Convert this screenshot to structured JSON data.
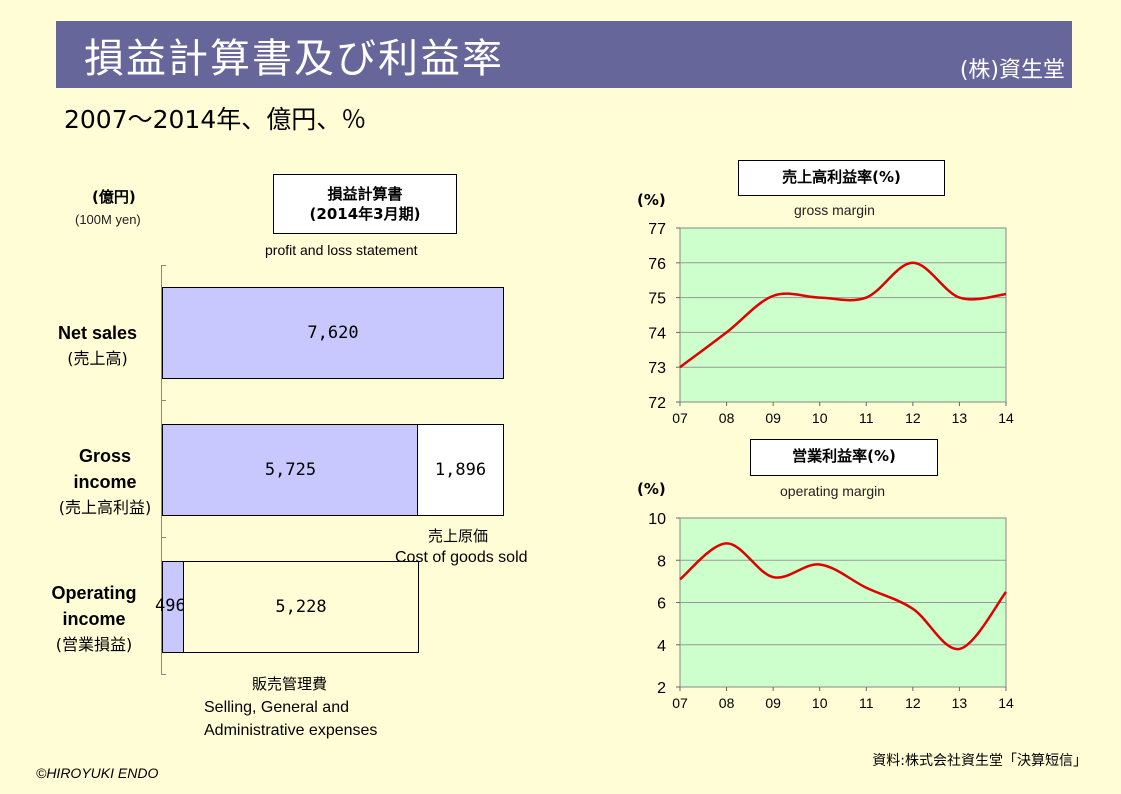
{
  "header": {
    "title": "損益計算書及び利益率",
    "company": "(株)資生堂",
    "subtitle": "2007～2014年、億円、％"
  },
  "statement": {
    "unit_jp": "(億円)",
    "unit_en": "(100M yen)",
    "box_line1": "損益計算書",
    "box_line2": "(2014年3月期)",
    "box_en": "profit and loss statement",
    "rows": [
      {
        "label_en_1": "Net sales",
        "label_en_2": "",
        "label_jp": "(売上高)",
        "bar_value": "7,620",
        "remainder": ""
      },
      {
        "label_en_1": "Gross",
        "label_en_2": "income",
        "label_jp": "(売上高利益)",
        "bar_value": "5,725",
        "remainder": "1,896"
      },
      {
        "label_en_1": "Operating",
        "label_en_2": "income",
        "label_jp": "(営業損益)",
        "bar_value": "496",
        "remainder": "5,228"
      }
    ],
    "cogs_jp": "売上原価",
    "cogs_en": "Cost of goods sold",
    "sga_jp": "販売管理費",
    "sga_en_1": "Selling, General and",
    "sga_en_2": "Administrative expenses"
  },
  "chart_data": [
    {
      "type": "line",
      "title": "売上高利益率(%)",
      "subtitle": "gross margin",
      "ylabel": "(%)",
      "x": [
        "07",
        "08",
        "09",
        "10",
        "11",
        "12",
        "13",
        "14"
      ],
      "values": [
        73.0,
        74.0,
        75.05,
        75.0,
        75.0,
        76.0,
        75.0,
        75.1
      ],
      "ylim": [
        72,
        77
      ],
      "yticks": [
        "72",
        "73",
        "74",
        "75",
        "76",
        "77"
      ],
      "grid": true,
      "line_color": "#e00000",
      "plot_bg": "#ccffcc"
    },
    {
      "type": "line",
      "title": "営業利益率(%)",
      "subtitle": "operating margin",
      "ylabel": "(%)",
      "x": [
        "07",
        "08",
        "09",
        "10",
        "11",
        "12",
        "13",
        "14"
      ],
      "values": [
        7.1,
        8.8,
        7.2,
        7.8,
        6.7,
        5.7,
        3.8,
        6.5
      ],
      "ylim": [
        2,
        10
      ],
      "yticks": [
        "2",
        "4",
        "6",
        "8",
        "10"
      ],
      "grid": true,
      "line_color": "#e00000",
      "plot_bg": "#ccffcc"
    }
  ],
  "footer": {
    "copyright": "©HIROYUKI ENDO",
    "source": "資料:株式会社資生堂「決算短信」"
  }
}
